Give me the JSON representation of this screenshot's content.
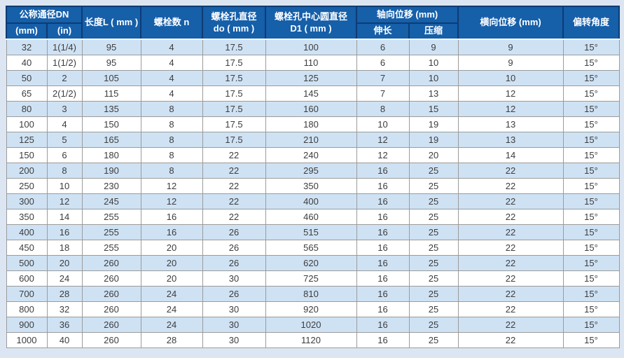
{
  "colors": {
    "page_background": "#dce6f2",
    "header_background": "#165fa9",
    "header_border": "#0d3c74",
    "header_text": "#ffffff",
    "row_alt_background": "#cfe2f4",
    "row_background": "#ffffff",
    "body_border": "#9b9b9b",
    "body_text": "#3d3d3d"
  },
  "chart_data": {
    "type": "table",
    "title": "",
    "header": {
      "dn_group": "公称通径DN",
      "dn_mm": "(mm)",
      "dn_in": "(in)",
      "length": "长度L ( mm )",
      "bolt_count": "螺栓数 n",
      "bolt_hole_dia": "螺栓孔直径\ndo ( mm )",
      "bolt_circle_dia": "螺栓孔中心圆直径\nD1 ( mm )",
      "axial_group": "轴向位移  (mm)",
      "axial_extend": "伸长",
      "axial_compress": "压缩",
      "lateral": "横向位移  (mm)",
      "deflection": "偏转角度"
    },
    "column_keys": [
      "dn_mm",
      "dn_in",
      "length_L_mm",
      "bolt_count_n",
      "bolt_hole_dia_do_mm",
      "bolt_circle_dia_D1_mm",
      "axial_extend_mm",
      "axial_compress_mm",
      "lateral_displacement_mm",
      "deflection_angle"
    ],
    "rows": [
      [
        "32",
        "1(1/4)",
        "95",
        "4",
        "17.5",
        "100",
        "6",
        "9",
        "9",
        "15°"
      ],
      [
        "40",
        "1(1/2)",
        "95",
        "4",
        "17.5",
        "110",
        "6",
        "10",
        "9",
        "15°"
      ],
      [
        "50",
        "2",
        "105",
        "4",
        "17.5",
        "125",
        "7",
        "10",
        "10",
        "15°"
      ],
      [
        "65",
        "2(1/2)",
        "115",
        "4",
        "17.5",
        "145",
        "7",
        "13",
        "12",
        "15°"
      ],
      [
        "80",
        "3",
        "135",
        "8",
        "17.5",
        "160",
        "8",
        "15",
        "12",
        "15°"
      ],
      [
        "100",
        "4",
        "150",
        "8",
        "17.5",
        "180",
        "10",
        "19",
        "13",
        "15°"
      ],
      [
        "125",
        "5",
        "165",
        "8",
        "17.5",
        "210",
        "12",
        "19",
        "13",
        "15°"
      ],
      [
        "150",
        "6",
        "180",
        "8",
        "22",
        "240",
        "12",
        "20",
        "14",
        "15°"
      ],
      [
        "200",
        "8",
        "190",
        "8",
        "22",
        "295",
        "16",
        "25",
        "22",
        "15°"
      ],
      [
        "250",
        "10",
        "230",
        "12",
        "22",
        "350",
        "16",
        "25",
        "22",
        "15°"
      ],
      [
        "300",
        "12",
        "245",
        "12",
        "22",
        "400",
        "16",
        "25",
        "22",
        "15°"
      ],
      [
        "350",
        "14",
        "255",
        "16",
        "22",
        "460",
        "16",
        "25",
        "22",
        "15°"
      ],
      [
        "400",
        "16",
        "255",
        "16",
        "26",
        "515",
        "16",
        "25",
        "22",
        "15°"
      ],
      [
        "450",
        "18",
        "255",
        "20",
        "26",
        "565",
        "16",
        "25",
        "22",
        "15°"
      ],
      [
        "500",
        "20",
        "260",
        "20",
        "26",
        "620",
        "16",
        "25",
        "22",
        "15°"
      ],
      [
        "600",
        "24",
        "260",
        "20",
        "30",
        "725",
        "16",
        "25",
        "22",
        "15°"
      ],
      [
        "700",
        "28",
        "260",
        "24",
        "26",
        "810",
        "16",
        "25",
        "22",
        "15°"
      ],
      [
        "800",
        "32",
        "260",
        "24",
        "30",
        "920",
        "16",
        "25",
        "22",
        "15°"
      ],
      [
        "900",
        "36",
        "260",
        "24",
        "30",
        "1020",
        "16",
        "25",
        "22",
        "15°"
      ],
      [
        "1000",
        "40",
        "260",
        "28",
        "30",
        "1120",
        "16",
        "25",
        "22",
        "15°"
      ]
    ]
  }
}
